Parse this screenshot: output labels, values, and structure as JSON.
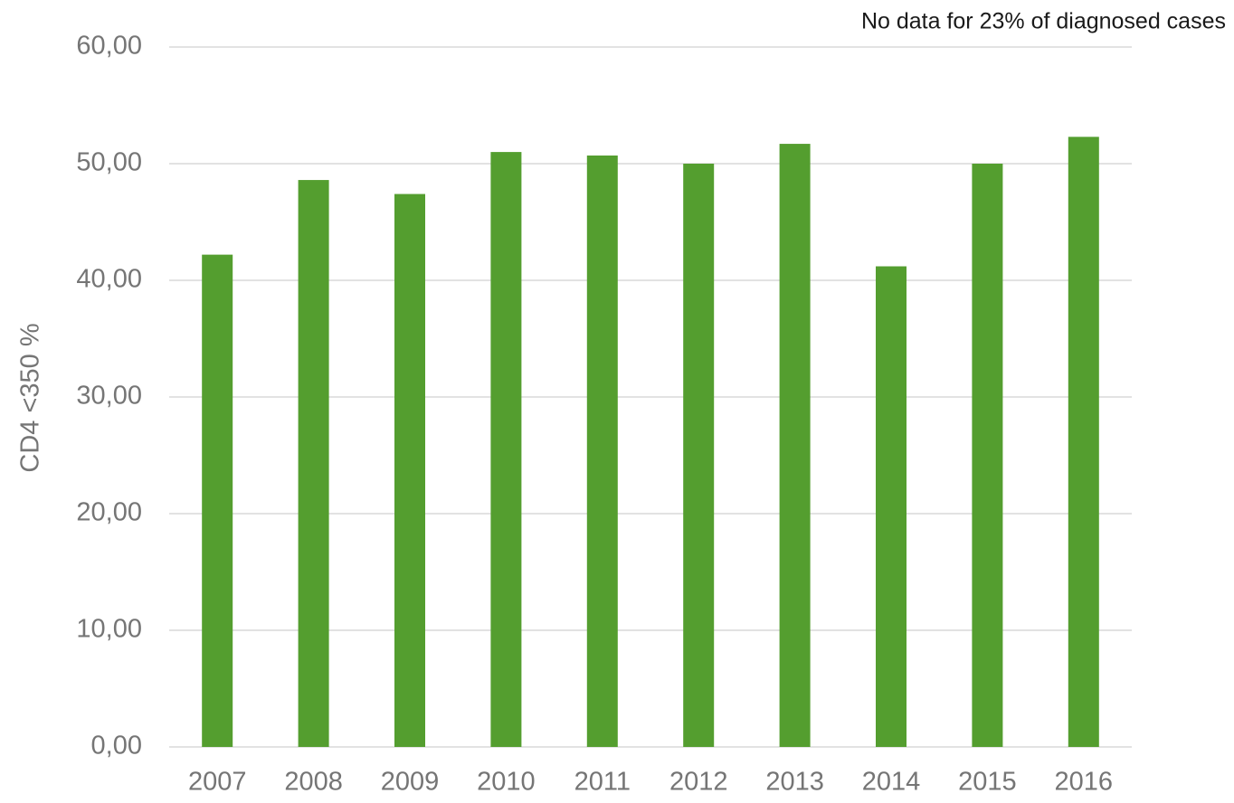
{
  "chart_data": {
    "type": "bar",
    "annotation": "No data for 23% of diagnosed cases",
    "y_label": "CD4 <350 %",
    "categories": [
      "2007",
      "2008",
      "2009",
      "2010",
      "2011",
      "2012",
      "2013",
      "2014",
      "2015",
      "2016"
    ],
    "values": [
      42.2,
      48.6,
      47.4,
      51.0,
      50.7,
      50.0,
      51.7,
      41.2,
      50.0,
      52.3
    ],
    "color": "#549e2f",
    "ylim": [
      0,
      60
    ],
    "yticks": [
      {
        "value": 0,
        "label": "0,00"
      },
      {
        "value": 10,
        "label": "10,00"
      },
      {
        "value": 20,
        "label": "20,00"
      },
      {
        "value": 30,
        "label": "30,00"
      },
      {
        "value": 40,
        "label": "40,00"
      },
      {
        "value": 50,
        "label": "50,00"
      },
      {
        "value": 60,
        "label": "60,00"
      }
    ],
    "grid": true
  }
}
